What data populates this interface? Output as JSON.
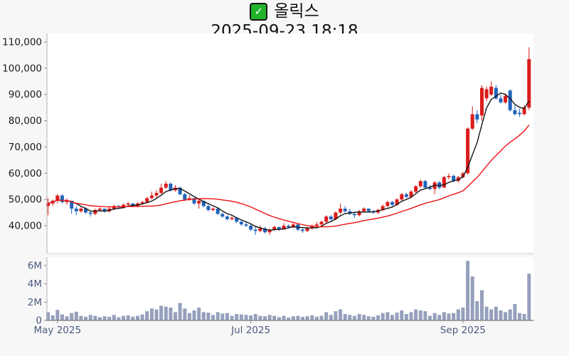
{
  "header": {
    "icon": "green-checkbox",
    "title": "올릭스",
    "timestamp": "2025-09-23 18:18"
  },
  "chart_data": {
    "type": "candlestick",
    "title": "올릭스",
    "subtitle": "2025-09-23 18:18",
    "legend_position": "none",
    "grid": false,
    "price_axis": {
      "ticks": [
        {
          "label": "110,000",
          "value": 110000
        },
        {
          "label": "100,000",
          "value": 100000
        },
        {
          "label": "90,000",
          "value": 90000
        },
        {
          "label": "80,000",
          "value": 80000
        },
        {
          "label": "70,000",
          "value": 70000
        },
        {
          "label": "60,000",
          "value": 60000
        },
        {
          "label": "50,000",
          "value": 50000
        },
        {
          "label": "40,000",
          "value": 40000
        }
      ]
    },
    "volume_axis": {
      "ticks": [
        {
          "label": "6M",
          "value": 6000000
        },
        {
          "label": "4M",
          "value": 4000000
        },
        {
          "label": "2M",
          "value": 2000000
        },
        {
          "label": "0",
          "value": 0
        }
      ]
    },
    "x_axis": {
      "month_labels": [
        {
          "label": "May 2025",
          "index": 2
        },
        {
          "label": "Jul 2025",
          "index": 43
        },
        {
          "label": "Sep 2025",
          "index": 88
        }
      ]
    },
    "series": [
      {
        "name": "ma-short",
        "type": "line",
        "period": 5,
        "color": "#141414"
      },
      {
        "name": "ma-long",
        "type": "line",
        "period": 20,
        "color": "#ee1212"
      }
    ],
    "colors": {
      "up": "#dc1c1c",
      "down": "#2063bb",
      "volume": "#95a0bc"
    },
    "candles_format": [
      "open",
      "high",
      "low",
      "close",
      "volume"
    ],
    "candles": [
      [
        47500,
        50500,
        44000,
        48500,
        900000
      ],
      [
        48500,
        50000,
        47500,
        49500,
        550000
      ],
      [
        49500,
        52000,
        48500,
        51500,
        1150000
      ],
      [
        51500,
        52000,
        48500,
        49000,
        650000
      ],
      [
        49000,
        50500,
        48000,
        49500,
        450000
      ],
      [
        49500,
        49500,
        44500,
        46500,
        800000
      ],
      [
        46500,
        47500,
        44000,
        45500,
        950000
      ],
      [
        45500,
        47000,
        45000,
        46500,
        500000
      ],
      [
        46500,
        47000,
        44500,
        45000,
        400000
      ],
      [
        45000,
        45500,
        43500,
        44500,
        600000
      ],
      [
        44500,
        46500,
        44000,
        46000,
        500000
      ],
      [
        46000,
        47000,
        45500,
        46500,
        350000
      ],
      [
        46500,
        46500,
        45000,
        45500,
        450000
      ],
      [
        45500,
        47000,
        45000,
        46500,
        400000
      ],
      [
        46500,
        48000,
        46000,
        47500,
        600000
      ],
      [
        47500,
        48000,
        46500,
        47000,
        350000
      ],
      [
        47000,
        48500,
        46500,
        48000,
        500000
      ],
      [
        48000,
        49000,
        47500,
        48500,
        550000
      ],
      [
        48500,
        48500,
        47000,
        47500,
        400000
      ],
      [
        47500,
        49000,
        47000,
        48500,
        500000
      ],
      [
        48500,
        49500,
        48000,
        49000,
        650000
      ],
      [
        49000,
        51000,
        48500,
        50500,
        1000000
      ],
      [
        50500,
        53000,
        50000,
        51500,
        1300000
      ],
      [
        51500,
        53500,
        50500,
        52500,
        1200000
      ],
      [
        52500,
        56000,
        52000,
        54500,
        1600000
      ],
      [
        54500,
        57000,
        54000,
        56000,
        1500000
      ],
      [
        56000,
        56500,
        53000,
        53500,
        1400000
      ],
      [
        53500,
        55500,
        53000,
        54500,
        900000
      ],
      [
        54500,
        55000,
        51500,
        52000,
        1900000
      ],
      [
        52000,
        52500,
        49500,
        50000,
        1300000
      ],
      [
        50000,
        51500,
        49500,
        50500,
        800000
      ],
      [
        50500,
        50500,
        48000,
        48500,
        1100000
      ],
      [
        48500,
        50000,
        46500,
        49500,
        1400000
      ],
      [
        49500,
        49500,
        47000,
        47500,
        900000
      ],
      [
        47500,
        48000,
        45500,
        46000,
        850000
      ],
      [
        46000,
        47000,
        45500,
        46500,
        600000
      ],
      [
        46500,
        46500,
        44000,
        44500,
        900000
      ],
      [
        44500,
        45000,
        43000,
        43500,
        750000
      ],
      [
        43500,
        44000,
        42000,
        42500,
        800000
      ],
      [
        42500,
        43500,
        42000,
        43000,
        500000
      ],
      [
        43000,
        43000,
        41000,
        41500,
        700000
      ],
      [
        41500,
        42000,
        40000,
        40500,
        650000
      ],
      [
        40500,
        41500,
        39500,
        40000,
        600000
      ],
      [
        40000,
        40500,
        38000,
        38500,
        550000
      ],
      [
        38500,
        40000,
        36500,
        38000,
        700000
      ],
      [
        38000,
        40000,
        37500,
        39000,
        500000
      ],
      [
        39000,
        39500,
        37000,
        37500,
        450000
      ],
      [
        37500,
        39000,
        36500,
        38500,
        600000
      ],
      [
        38500,
        40000,
        38000,
        39500,
        500000
      ],
      [
        39500,
        39500,
        38000,
        38500,
        350000
      ],
      [
        38500,
        41000,
        38500,
        40000,
        500000
      ],
      [
        40000,
        40500,
        39000,
        39500,
        300000
      ],
      [
        39500,
        41000,
        39000,
        40500,
        450000
      ],
      [
        40500,
        40500,
        38000,
        38500,
        500000
      ],
      [
        38500,
        39000,
        37300,
        38000,
        400000
      ],
      [
        38000,
        39500,
        37500,
        39000,
        450000
      ],
      [
        39000,
        40500,
        38500,
        40000,
        550000
      ],
      [
        40000,
        41500,
        39500,
        40500,
        400000
      ],
      [
        40500,
        42000,
        40000,
        41500,
        500000
      ],
      [
        41500,
        44000,
        41000,
        43500,
        900000
      ],
      [
        43500,
        44000,
        42000,
        42500,
        600000
      ],
      [
        42500,
        45500,
        42000,
        45000,
        1000000
      ],
      [
        45000,
        48500,
        44500,
        46500,
        1200000
      ],
      [
        46500,
        47500,
        45000,
        45500,
        700000
      ],
      [
        45500,
        46500,
        44000,
        44500,
        600000
      ],
      [
        44500,
        45000,
        43000,
        44000,
        500000
      ],
      [
        44000,
        46000,
        43500,
        45500,
        700000
      ],
      [
        45500,
        47000,
        45000,
        46500,
        600000
      ],
      [
        46500,
        46500,
        45000,
        45500,
        450000
      ],
      [
        45500,
        46000,
        44500,
        45000,
        400000
      ],
      [
        45000,
        46500,
        44500,
        46000,
        550000
      ],
      [
        46000,
        48000,
        45500,
        47500,
        800000
      ],
      [
        47500,
        49500,
        47000,
        49000,
        900000
      ],
      [
        49000,
        49500,
        47500,
        48000,
        600000
      ],
      [
        48000,
        50500,
        47500,
        50000,
        850000
      ],
      [
        50000,
        52500,
        49500,
        52000,
        1100000
      ],
      [
        52000,
        52500,
        50500,
        51000,
        700000
      ],
      [
        51000,
        53500,
        50500,
        53000,
        900000
      ],
      [
        53000,
        55500,
        52500,
        55000,
        1200000
      ],
      [
        55000,
        57500,
        54500,
        57000,
        1100000
      ],
      [
        57000,
        57500,
        54000,
        54500,
        1000000
      ],
      [
        54500,
        55500,
        53500,
        54000,
        500000
      ],
      [
        54000,
        57000,
        52000,
        56500,
        800000
      ],
      [
        56500,
        57000,
        54000,
        54500,
        600000
      ],
      [
        54500,
        59000,
        54500,
        58500,
        900000
      ],
      [
        58500,
        60000,
        57500,
        59000,
        750000
      ],
      [
        59000,
        59500,
        56500,
        57000,
        800000
      ],
      [
        57000,
        59000,
        56500,
        58500,
        1200000
      ],
      [
        58500,
        60500,
        58000,
        60000,
        1400000
      ],
      [
        60000,
        77500,
        59500,
        77000,
        6500000
      ],
      [
        77000,
        85500,
        76500,
        82500,
        4800000
      ],
      [
        82500,
        84000,
        79000,
        80500,
        2100000
      ],
      [
        82000,
        93500,
        80000,
        92500,
        3300000
      ],
      [
        88500,
        93000,
        87500,
        92000,
        1500000
      ],
      [
        90000,
        95000,
        89500,
        93000,
        1200000
      ],
      [
        92500,
        93500,
        88000,
        88500,
        1500000
      ],
      [
        88500,
        90000,
        86500,
        87000,
        1100000
      ],
      [
        87000,
        90500,
        86500,
        89500,
        900000
      ],
      [
        91500,
        92000,
        83500,
        84000,
        1200000
      ],
      [
        84000,
        86000,
        82000,
        82500,
        1800000
      ],
      [
        83000,
        84500,
        81500,
        82500,
        800000
      ],
      [
        82500,
        86000,
        82000,
        85000,
        700000
      ],
      [
        85000,
        108000,
        84000,
        103500,
        5100000
      ]
    ]
  }
}
